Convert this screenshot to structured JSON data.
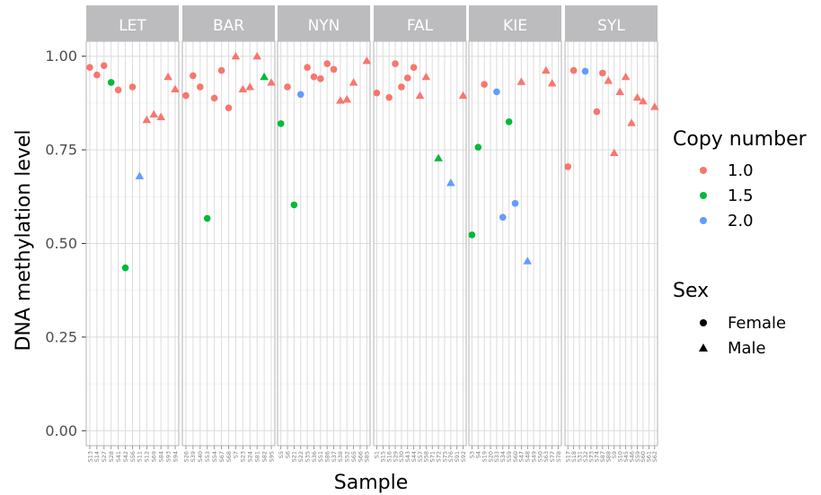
{
  "chart_data": {
    "type": "scatter",
    "xlabel": "Sample",
    "ylabel": "DNA methylation level",
    "ylim": [
      -0.04,
      1.04
    ],
    "yticks": [
      0.0,
      0.25,
      0.5,
      0.75,
      1.0
    ],
    "ytick_labels": [
      "0.00",
      "0.25",
      "0.50",
      "0.75",
      "1.00"
    ],
    "grid": true,
    "legend_placement": "right",
    "colors": {
      "1.0": "#F8766D",
      "1.5": "#00BA38",
      "2.0": "#619CFF"
    },
    "legends": [
      {
        "title": "Copy number",
        "kind": "color",
        "items": [
          {
            "label": "1.0",
            "key": "1.0"
          },
          {
            "label": "1.5",
            "key": "1.5"
          },
          {
            "label": "2.0",
            "key": "2.0"
          }
        ]
      },
      {
        "title": "Sex",
        "kind": "shape",
        "items": [
          {
            "label": "Female",
            "shape": "circle"
          },
          {
            "label": "Male",
            "shape": "triangle"
          }
        ]
      }
    ],
    "facets": [
      {
        "name": "LET",
        "samples": [
          "S13",
          "S14",
          "S27",
          "S28",
          "S41",
          "S42",
          "S56",
          "S11",
          "S12",
          "S69",
          "S84",
          "S93",
          "S94"
        ],
        "points": [
          {
            "sample": "S13",
            "y": 0.97,
            "cn": "1.0",
            "sex": "Female"
          },
          {
            "sample": "S14",
            "y": 0.95,
            "cn": "1.0",
            "sex": "Female"
          },
          {
            "sample": "S27",
            "y": 0.975,
            "cn": "1.0",
            "sex": "Female"
          },
          {
            "sample": "S28",
            "y": 0.93,
            "cn": "1.5",
            "sex": "Female"
          },
          {
            "sample": "S41",
            "y": 0.91,
            "cn": "1.0",
            "sex": "Female"
          },
          {
            "sample": "S42",
            "y": 0.435,
            "cn": "1.5",
            "sex": "Female"
          },
          {
            "sample": "S56",
            "y": 0.918,
            "cn": "1.0",
            "sex": "Female"
          },
          {
            "sample": "S11",
            "y": 0.68,
            "cn": "2.0",
            "sex": "Male"
          },
          {
            "sample": "S12",
            "y": 0.83,
            "cn": "1.0",
            "sex": "Male"
          },
          {
            "sample": "S69",
            "y": 0.845,
            "cn": "1.0",
            "sex": "Male"
          },
          {
            "sample": "S84",
            "y": 0.838,
            "cn": "1.0",
            "sex": "Male"
          },
          {
            "sample": "S93",
            "y": 0.945,
            "cn": "1.0",
            "sex": "Male"
          },
          {
            "sample": "S94",
            "y": 0.912,
            "cn": "1.0",
            "sex": "Male"
          }
        ]
      },
      {
        "name": "BAR",
        "samples": [
          "S26",
          "S39",
          "S40",
          "S53",
          "S54",
          "S67",
          "S68",
          "S7",
          "S23",
          "S24",
          "S81",
          "S82",
          "S95"
        ],
        "points": [
          {
            "sample": "S26",
            "y": 0.895,
            "cn": "1.0",
            "sex": "Female"
          },
          {
            "sample": "S39",
            "y": 0.948,
            "cn": "1.0",
            "sex": "Female"
          },
          {
            "sample": "S40",
            "y": 0.918,
            "cn": "1.0",
            "sex": "Female"
          },
          {
            "sample": "S53",
            "y": 0.567,
            "cn": "1.5",
            "sex": "Female"
          },
          {
            "sample": "S54",
            "y": 0.888,
            "cn": "1.0",
            "sex": "Female"
          },
          {
            "sample": "S67",
            "y": 0.962,
            "cn": "1.0",
            "sex": "Female"
          },
          {
            "sample": "S68",
            "y": 0.862,
            "cn": "1.0",
            "sex": "Female"
          },
          {
            "sample": "S7",
            "y": 1.0,
            "cn": "1.0",
            "sex": "Male"
          },
          {
            "sample": "S23",
            "y": 0.912,
            "cn": "1.0",
            "sex": "Male"
          },
          {
            "sample": "S24",
            "y": 0.918,
            "cn": "1.0",
            "sex": "Male"
          },
          {
            "sample": "S81",
            "y": 1.0,
            "cn": "1.0",
            "sex": "Male"
          },
          {
            "sample": "S82",
            "y": 0.945,
            "cn": "1.5",
            "sex": "Male"
          },
          {
            "sample": "S95",
            "y": 0.93,
            "cn": "1.0",
            "sex": "Male"
          }
        ]
      },
      {
        "name": "NYN",
        "samples": [
          "S5",
          "S6",
          "S21",
          "S22",
          "S35",
          "S36",
          "S51",
          "S86",
          "S37",
          "S38",
          "S52",
          "S65",
          "S66",
          "S85"
        ],
        "points": [
          {
            "sample": "S5",
            "y": 0.82,
            "cn": "1.5",
            "sex": "Female"
          },
          {
            "sample": "S6",
            "y": 0.918,
            "cn": "1.0",
            "sex": "Female"
          },
          {
            "sample": "S21",
            "y": 0.603,
            "cn": "1.5",
            "sex": "Female"
          },
          {
            "sample": "S22",
            "y": 0.898,
            "cn": "2.0",
            "sex": "Female"
          },
          {
            "sample": "S35",
            "y": 0.97,
            "cn": "1.0",
            "sex": "Female"
          },
          {
            "sample": "S36",
            "y": 0.945,
            "cn": "1.0",
            "sex": "Female"
          },
          {
            "sample": "S51",
            "y": 0.94,
            "cn": "1.0",
            "sex": "Female"
          },
          {
            "sample": "S86",
            "y": 0.98,
            "cn": "1.0",
            "sex": "Female"
          },
          {
            "sample": "S37",
            "y": 0.965,
            "cn": "1.0",
            "sex": "Female"
          },
          {
            "sample": "S38",
            "y": 0.882,
            "cn": "1.0",
            "sex": "Male"
          },
          {
            "sample": "S52",
            "y": 0.885,
            "cn": "1.0",
            "sex": "Male"
          },
          {
            "sample": "S65",
            "y": 0.93,
            "cn": "1.0",
            "sex": "Male"
          },
          {
            "sample": "S85",
            "y": 0.988,
            "cn": "1.0",
            "sex": "Male"
          }
        ]
      },
      {
        "name": "FAL",
        "samples": [
          "S1",
          "S15",
          "S16",
          "S29",
          "S30",
          "S43",
          "S44",
          "S57",
          "S58",
          "S71",
          "S72",
          "S75",
          "S76",
          "S91",
          "S92"
        ],
        "points": [
          {
            "sample": "S1",
            "y": 0.902,
            "cn": "1.0",
            "sex": "Female"
          },
          {
            "sample": "S16",
            "y": 0.89,
            "cn": "1.0",
            "sex": "Female"
          },
          {
            "sample": "S29",
            "y": 0.98,
            "cn": "1.0",
            "sex": "Female"
          },
          {
            "sample": "S30",
            "y": 0.918,
            "cn": "1.0",
            "sex": "Female"
          },
          {
            "sample": "S43",
            "y": 0.942,
            "cn": "1.0",
            "sex": "Female"
          },
          {
            "sample": "S44",
            "y": 0.97,
            "cn": "1.0",
            "sex": "Female"
          },
          {
            "sample": "S57",
            "y": 0.895,
            "cn": "1.0",
            "sex": "Male"
          },
          {
            "sample": "S58",
            "y": 0.945,
            "cn": "1.0",
            "sex": "Male"
          },
          {
            "sample": "S72",
            "y": 0.728,
            "cn": "1.5",
            "sex": "Male"
          },
          {
            "sample": "S76",
            "y": 0.662,
            "cn": "2.0",
            "sex": "Male"
          },
          {
            "sample": "S92",
            "y": 0.895,
            "cn": "1.0",
            "sex": "Male"
          }
        ]
      },
      {
        "name": "KIE",
        "samples": [
          "S3",
          "S4",
          "S19",
          "S20",
          "S33",
          "S34",
          "S59",
          "S60",
          "S47",
          "S48",
          "S49",
          "S50",
          "S63",
          "S77",
          "S78"
        ],
        "points": [
          {
            "sample": "S3",
            "y": 0.523,
            "cn": "1.5",
            "sex": "Female"
          },
          {
            "sample": "S4",
            "y": 0.757,
            "cn": "1.5",
            "sex": "Female"
          },
          {
            "sample": "S19",
            "y": 0.925,
            "cn": "1.0",
            "sex": "Female"
          },
          {
            "sample": "S33",
            "y": 0.905,
            "cn": "2.0",
            "sex": "Female"
          },
          {
            "sample": "S34",
            "y": 0.57,
            "cn": "2.0",
            "sex": "Female"
          },
          {
            "sample": "S59",
            "y": 0.825,
            "cn": "1.5",
            "sex": "Female"
          },
          {
            "sample": "S60",
            "y": 0.607,
            "cn": "2.0",
            "sex": "Female"
          },
          {
            "sample": "S47",
            "y": 0.932,
            "cn": "1.0",
            "sex": "Male"
          },
          {
            "sample": "S48",
            "y": 0.453,
            "cn": "2.0",
            "sex": "Male"
          },
          {
            "sample": "S63",
            "y": 0.962,
            "cn": "1.0",
            "sex": "Male"
          },
          {
            "sample": "S77",
            "y": 0.928,
            "cn": "1.0",
            "sex": "Male"
          }
        ]
      },
      {
        "name": "SYL",
        "samples": [
          "S17",
          "S18",
          "S31",
          "S32",
          "S73",
          "S74",
          "S87",
          "S88",
          "S9",
          "S10",
          "S45",
          "S46",
          "S59",
          "S60",
          "S61",
          "S62"
        ],
        "points": [
          {
            "sample": "S17",
            "y": 0.705,
            "cn": "1.0",
            "sex": "Female"
          },
          {
            "sample": "S18",
            "y": 0.962,
            "cn": "1.0",
            "sex": "Female"
          },
          {
            "sample": "S32",
            "y": 0.96,
            "cn": "2.0",
            "sex": "Female"
          },
          {
            "sample": "S74",
            "y": 0.852,
            "cn": "1.0",
            "sex": "Female"
          },
          {
            "sample": "S87",
            "y": 0.955,
            "cn": "1.0",
            "sex": "Female"
          },
          {
            "sample": "S88",
            "y": 0.935,
            "cn": "1.0",
            "sex": "Male"
          },
          {
            "sample": "S9",
            "y": 0.742,
            "cn": "1.0",
            "sex": "Male"
          },
          {
            "sample": "S10",
            "y": 0.905,
            "cn": "1.0",
            "sex": "Male"
          },
          {
            "sample": "S45",
            "y": 0.945,
            "cn": "1.0",
            "sex": "Male"
          },
          {
            "sample": "S46",
            "y": 0.822,
            "cn": "1.0",
            "sex": "Male"
          },
          {
            "sample": "S59",
            "y": 0.89,
            "cn": "1.0",
            "sex": "Male"
          },
          {
            "sample": "S60",
            "y": 0.88,
            "cn": "1.0",
            "sex": "Male"
          },
          {
            "sample": "S62",
            "y": 0.865,
            "cn": "1.0",
            "sex": "Male"
          }
        ]
      }
    ]
  }
}
